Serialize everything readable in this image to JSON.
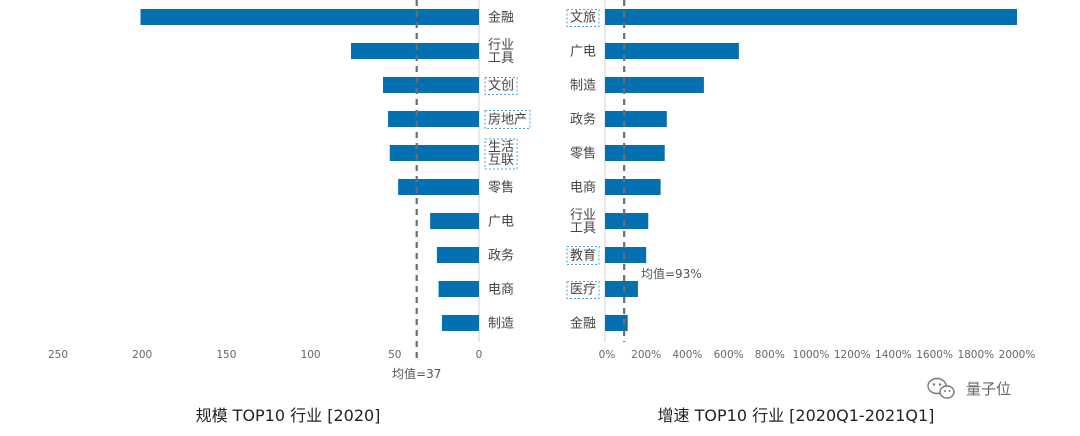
{
  "chart_data": [
    {
      "type": "bar",
      "orientation": "horizontal",
      "title": "规模 TOP10 行业 [2020]",
      "categories": [
        "金融",
        "行业\n工具",
        "文创",
        "房地产",
        "生活\n互联",
        "零售",
        "广电",
        "政务",
        "电商",
        "制造"
      ],
      "values": [
        201,
        76,
        57,
        54,
        53,
        48,
        29,
        25,
        24,
        22
      ],
      "highlighted": [
        "文创",
        "房地产",
        "生活\n互联"
      ],
      "xlim": [
        0,
        250
      ],
      "ticks": [
        250,
        200,
        150,
        100,
        50,
        0
      ],
      "tick_labels": [
        "250",
        "200",
        "150",
        "100",
        "50",
        "0"
      ],
      "axis_reversed": true,
      "average": 37,
      "average_label": "均值=37",
      "bar_color": "#0570b0"
    },
    {
      "type": "bar",
      "orientation": "horizontal",
      "title": "增速 TOP10 行业 [2020Q1-2021Q1]",
      "categories": [
        "文旅",
        "广电",
        "制造",
        "政务",
        "零售",
        "电商",
        "行业\n工具",
        "教育",
        "医疗",
        "金融"
      ],
      "values": [
        2000,
        650,
        480,
        300,
        290,
        270,
        210,
        200,
        160,
        110
      ],
      "highlighted": [
        "文旅",
        "教育",
        "医疗"
      ],
      "xlim": [
        0,
        2000
      ],
      "ticks": [
        0,
        200,
        400,
        600,
        800,
        1000,
        1200,
        1400,
        1600,
        1800,
        2000
      ],
      "tick_labels": [
        "0%",
        "200%",
        "400%",
        "600%",
        "800%",
        "1000%",
        "1200%",
        "1400%",
        "1600%",
        "1800%",
        "2000%"
      ],
      "average": 93,
      "average_label": "均值=93%",
      "bar_color": "#0570b0"
    }
  ],
  "watermark": {
    "text": "量子位",
    "icon": "wechat-icon"
  }
}
